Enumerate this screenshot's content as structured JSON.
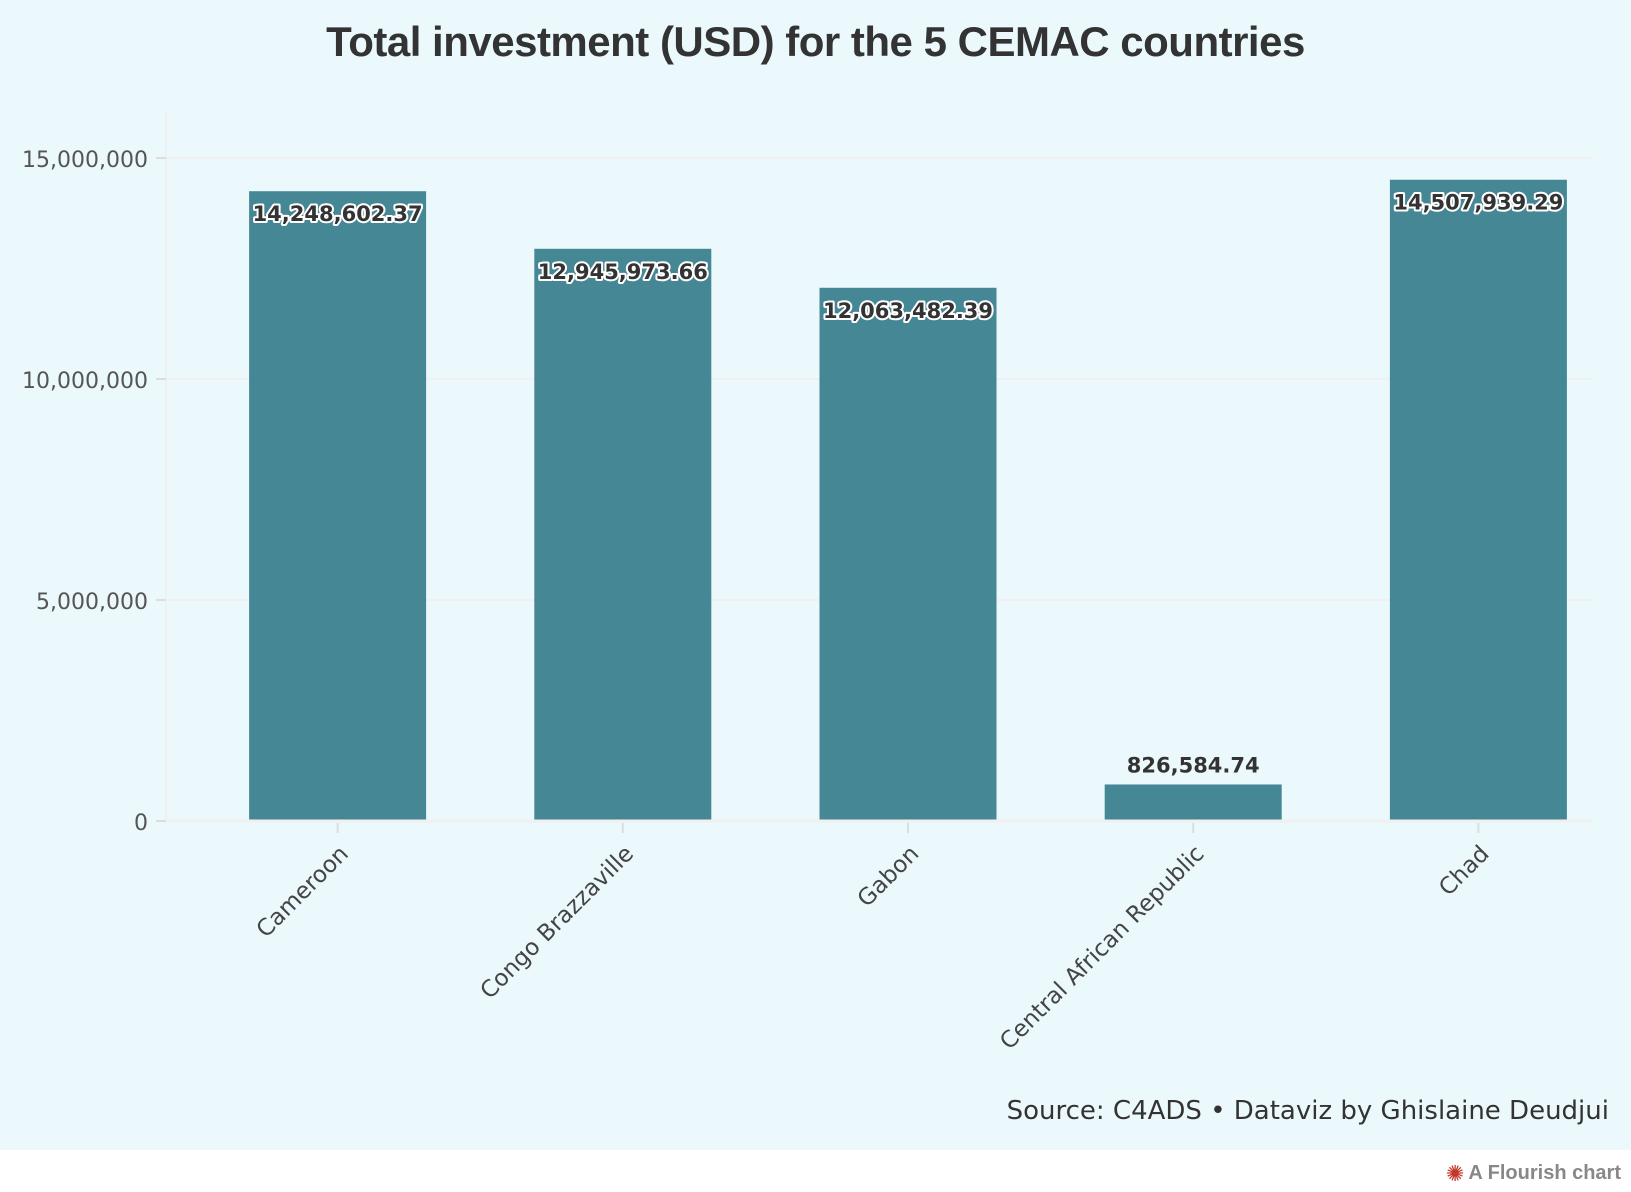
{
  "title": "Total investment (USD) for the 5 CEMAC countries",
  "source_note": "Source: C4ADS • Dataviz by Ghislaine Deudjui",
  "footer": {
    "label": "A Flourish chart",
    "icon": "flourish-burst-icon"
  },
  "colors": {
    "background": "#ebf9fc",
    "bar": "#468796",
    "grid": "#f0f0f0",
    "text": "#333333",
    "flourish_icon": "#c0392b"
  },
  "chart_data": {
    "type": "bar",
    "title": "Total investment (USD) for the 5 CEMAC countries",
    "xlabel": "",
    "ylabel": "",
    "ylim": [
      0,
      16000000
    ],
    "yticks": [
      0,
      5000000,
      10000000,
      15000000
    ],
    "ytick_labels": [
      "0",
      "5,000,000",
      "10,000,000",
      "15,000,000"
    ],
    "grid": true,
    "legend": "none",
    "categories": [
      "Cameroon",
      "Congo Brazzaville",
      "Gabon",
      "Central African Republic",
      "Chad"
    ],
    "values": [
      14248602.37,
      12945973.66,
      12063482.39,
      826584.74,
      14507939.29
    ],
    "value_labels": [
      "14,248,602.37",
      "12,945,973.66",
      "12,063,482.39",
      "826,584.74",
      "14,507,939.29"
    ]
  }
}
